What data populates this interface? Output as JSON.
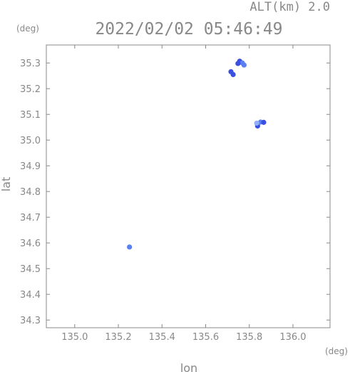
{
  "header": {
    "alt_label": "ALT(km) 2.0",
    "timestamp": "2022/02/02 05:46:49"
  },
  "chart_data": {
    "type": "scatter",
    "title": "2022/02/02 05:46:49",
    "xlabel": "lon",
    "ylabel": "lat",
    "x_unit": "(deg)",
    "y_unit": "(deg)",
    "xlim": [
      134.87,
      136.17
    ],
    "ylim": [
      34.27,
      35.37
    ],
    "x_ticks": [
      135.0,
      135.2,
      135.4,
      135.6,
      135.8,
      136.0
    ],
    "x_tick_labels": [
      "135.0",
      "135.2",
      "135.4",
      "135.6",
      "135.8",
      "136.0"
    ],
    "y_ticks": [
      34.3,
      34.4,
      34.5,
      34.6,
      34.7,
      34.8,
      34.9,
      35.0,
      35.1,
      35.2,
      35.3
    ],
    "y_tick_labels": [
      "34.3",
      "34.4",
      "34.5",
      "34.6",
      "34.7",
      "34.8",
      "34.9",
      "35.0",
      "35.1",
      "35.2",
      "35.3"
    ],
    "grid": false,
    "colors": {
      "axis": "#888888",
      "echo_light": "#5a7ff0",
      "echo_dark": "#3a4fe0",
      "echo_pale": "#8fb0ff"
    },
    "series": [
      {
        "points": [
          {
            "x": 135.756,
            "y": 35.307,
            "c": "echo_dark"
          },
          {
            "x": 135.768,
            "y": 35.3,
            "c": "echo_light"
          },
          {
            "x": 135.776,
            "y": 35.292,
            "c": "echo_light"
          },
          {
            "x": 135.748,
            "y": 35.298,
            "c": "echo_dark"
          },
          {
            "x": 135.716,
            "y": 35.266,
            "c": "echo_dark"
          },
          {
            "x": 135.726,
            "y": 35.255,
            "c": "echo_dark"
          },
          {
            "x": 135.852,
            "y": 35.07,
            "c": "echo_light"
          },
          {
            "x": 135.866,
            "y": 35.069,
            "c": "echo_dark"
          },
          {
            "x": 135.838,
            "y": 35.055,
            "c": "echo_dark"
          },
          {
            "x": 135.834,
            "y": 35.066,
            "c": "echo_pale"
          },
          {
            "x": 135.251,
            "y": 34.584,
            "c": "echo_light"
          }
        ]
      }
    ]
  }
}
